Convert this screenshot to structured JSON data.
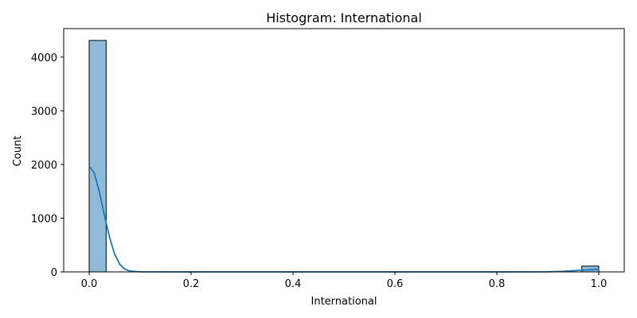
{
  "chart_data": {
    "type": "bar",
    "title": "Histogram: International",
    "xlabel": "International",
    "ylabel": "Count",
    "xlim": [
      -0.05,
      1.05
    ],
    "ylim": [
      0,
      4530
    ],
    "x_ticks": [
      0.0,
      0.2,
      0.4,
      0.6,
      0.8,
      1.0
    ],
    "x_tick_labels": [
      "0.0",
      "0.2",
      "0.4",
      "0.6",
      "0.8",
      "1.0"
    ],
    "y_ticks": [
      0,
      1000,
      2000,
      3000,
      4000
    ],
    "y_tick_labels": [
      "0",
      "1000",
      "2000",
      "3000",
      "4000"
    ],
    "bins": [
      {
        "x0": 0.0,
        "x1": 0.0333,
        "count": 4310
      },
      {
        "x0": 0.9667,
        "x1": 1.0,
        "count": 108
      }
    ],
    "kde": {
      "x": [
        0.0,
        0.01,
        0.02,
        0.03,
        0.04,
        0.05,
        0.06,
        0.07,
        0.08,
        0.1,
        0.2,
        0.4,
        0.6,
        0.8,
        0.9,
        0.93,
        0.96,
        0.98,
        1.0
      ],
      "y": [
        1970,
        1840,
        1490,
        1050,
        640,
        330,
        140,
        50,
        15,
        2,
        0,
        0,
        0,
        0,
        2,
        10,
        28,
        40,
        45
      ]
    },
    "grid": false,
    "colors": {
      "bar_fill": "#8fbbd9",
      "bar_edge": "#000000",
      "kde_line": "#1f77b4",
      "axes": "#000000"
    }
  }
}
